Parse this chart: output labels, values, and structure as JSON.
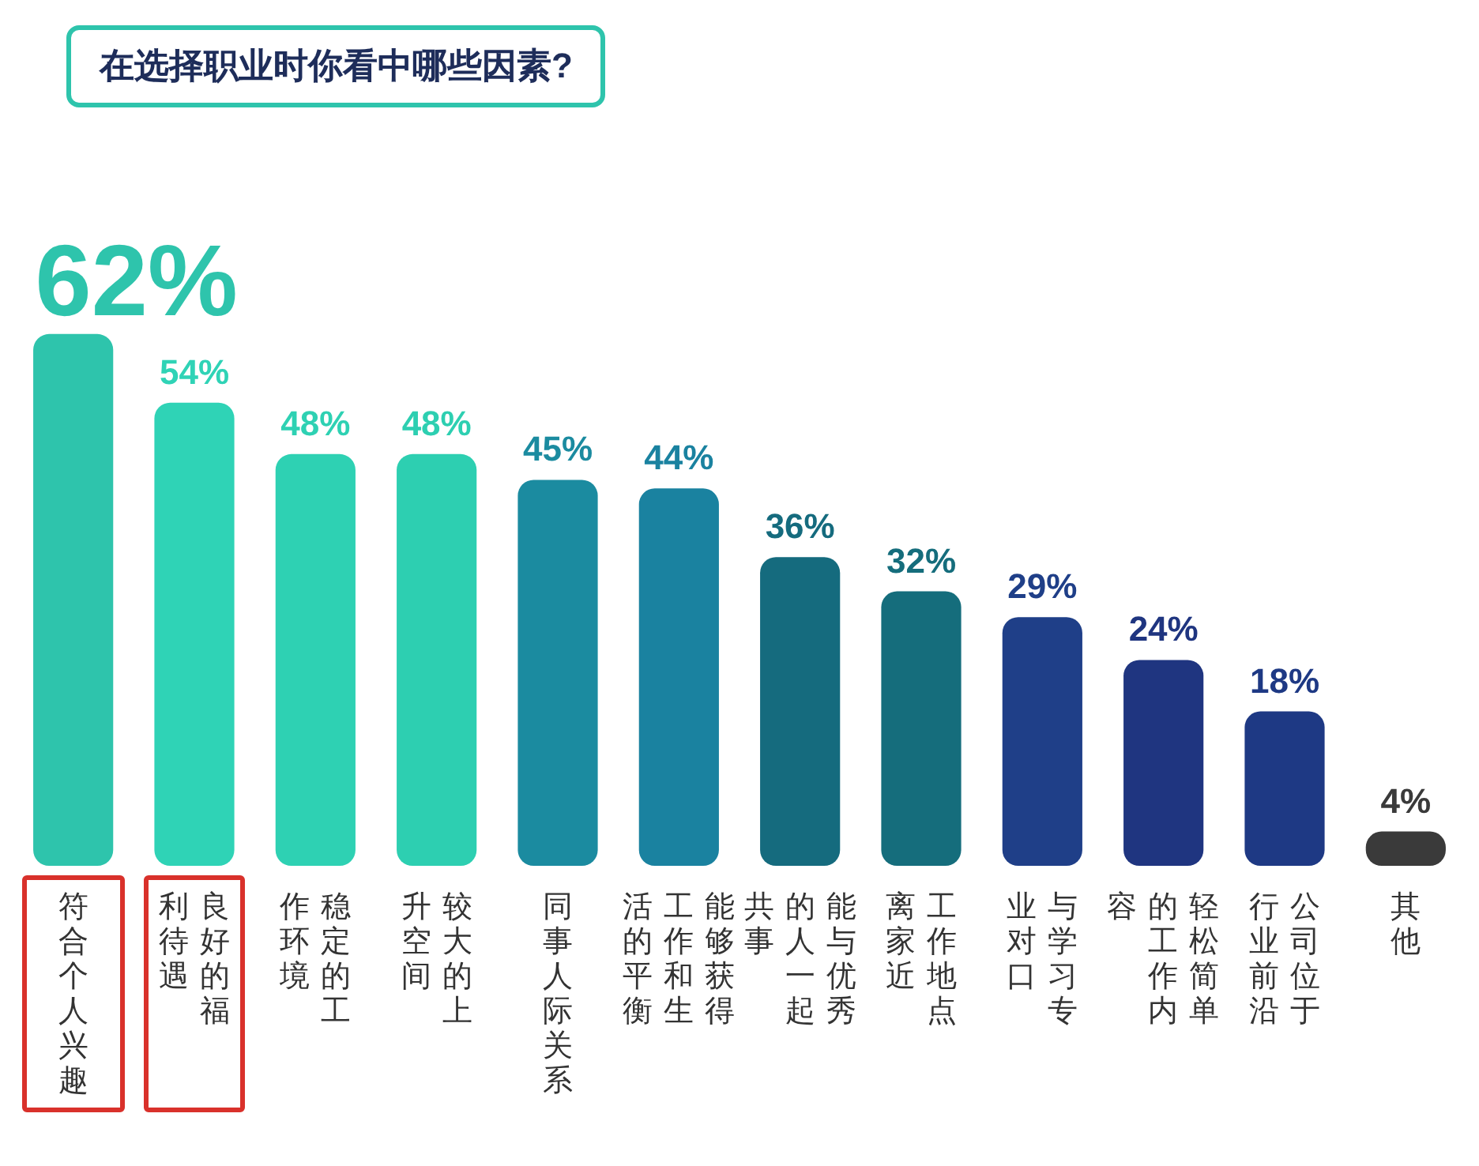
{
  "chart_data": {
    "type": "bar",
    "title": "在选择职业时你看中哪些因素?",
    "categories": [
      "符合个人兴趣",
      "良好的福利待遇",
      "稳定的工作环境",
      "较大的上升空间",
      "同事人际关系",
      "能够获得工作和生活的平衡",
      "能与优秀的人一起共事",
      "工作地点离家近",
      "与学习专业对口",
      "轻松简单的工作内容",
      "公司位于行业前沿",
      "其他"
    ],
    "values": [
      62,
      54,
      48,
      48,
      45,
      44,
      36,
      32,
      29,
      24,
      18,
      4
    ],
    "colors": [
      "#2ec4ac",
      "#2fd3b6",
      "#2ed1b3",
      "#2dcfb1",
      "#1b8ba0",
      "#1a82a0",
      "#156b7e",
      "#156d7c",
      "#1f3f88",
      "#1f3580",
      "#1e3984",
      "#3a3a3a"
    ],
    "value_labels": [
      "62%",
      "54%",
      "48%",
      "48%",
      "45%",
      "44%",
      "36%",
      "32%",
      "29%",
      "24%",
      "18%",
      "4%"
    ]
  }
}
